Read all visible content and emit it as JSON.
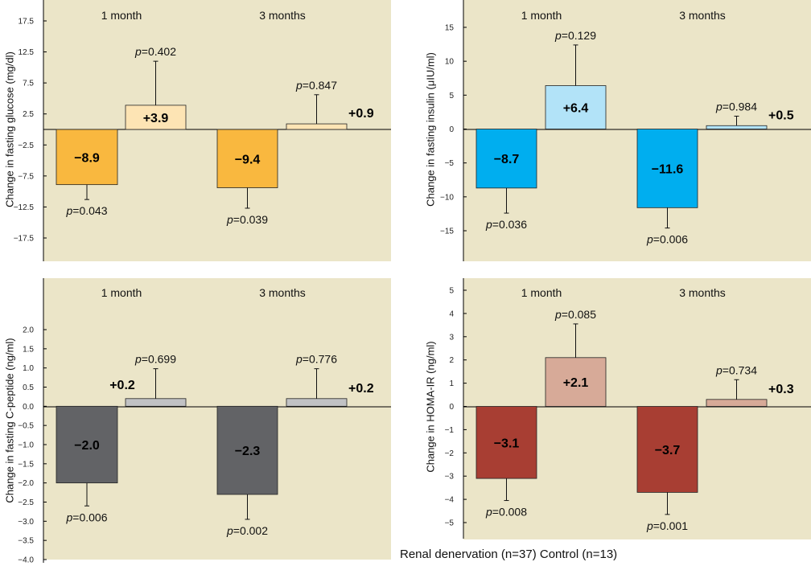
{
  "chart_data": [
    {
      "type": "bar",
      "ylabel": "Change in fasting glucose (mg/dl)",
      "ylim": [
        -20,
        20
      ],
      "yticks": [
        "17.5",
        "12.5",
        "7.5",
        "2.5",
        "-2.5",
        "-7.5",
        "-12.5",
        "-17.5"
      ],
      "categories": [
        "1 month",
        "3 months"
      ],
      "series": [
        {
          "name": "Renal denervation",
          "values": [
            -8.9,
            -9.4
          ],
          "errors": [
            2.4,
            3.3
          ],
          "labels": [
            "−8.9",
            "−9.4"
          ],
          "pvalues": [
            "0.043",
            "0.039"
          ],
          "color": "#f9b83f"
        },
        {
          "name": "Control",
          "values": [
            3.9,
            0.9
          ],
          "errors": [
            7.1,
            4.7
          ],
          "labels": [
            "+3.9",
            "+0.9"
          ],
          "pvalues": [
            "0.402",
            "0.847"
          ],
          "color": "#fde4b4"
        }
      ]
    },
    {
      "type": "bar",
      "ylabel": "Change in fasting insulin (μIU/ml)",
      "ylim": [
        -19,
        19
      ],
      "yticks": [
        "15",
        "10",
        "5",
        "0",
        "-5",
        "-10",
        "-15"
      ],
      "categories": [
        "1 month",
        "3 months"
      ],
      "series": [
        {
          "name": "Renal denervation",
          "values": [
            -8.7,
            -11.6
          ],
          "errors": [
            3.7,
            3.0
          ],
          "labels": [
            "−8.7",
            "−11.6"
          ],
          "pvalues": [
            "0.036",
            "0.006"
          ],
          "color": "#00aeef"
        },
        {
          "name": "Control",
          "values": [
            6.4,
            0.5
          ],
          "errors": [
            6.0,
            1.4
          ],
          "labels": [
            "+6.4",
            "+0.5"
          ],
          "pvalues": [
            "0.129",
            "0.984"
          ],
          "color": "#b2e3f8"
        }
      ]
    },
    {
      "type": "bar",
      "ylabel": "Change in fasting C-peptide (ng/ml)",
      "ylim": [
        -4,
        2.5
      ],
      "yticks": [
        "2.0",
        "1.5",
        "1.0",
        "0.5",
        "0.0",
        "-0.5",
        "-1.0",
        "-1.5",
        "-2.0",
        "-2.5",
        "-3.0",
        "-3.5",
        "-4.0"
      ],
      "categories": [
        "1 month",
        "3 months"
      ],
      "series": [
        {
          "name": "Renal denervation",
          "values": [
            -2.0,
            -2.3
          ],
          "errors": [
            0.6,
            0.65
          ],
          "labels": [
            "−2.0",
            "−2.3"
          ],
          "pvalues": [
            "0.006",
            "0.002"
          ],
          "color": "#626366"
        },
        {
          "name": "Control",
          "values": [
            0.2,
            0.2
          ],
          "errors": [
            0.78,
            0.78
          ],
          "labels": [
            "+0.2",
            "+0.2"
          ],
          "pvalues": [
            "0.699",
            "0.776"
          ],
          "color": "#c1c2c4"
        }
      ]
    },
    {
      "type": "bar",
      "ylabel": "Change in HOMA-IR (ng/ml)",
      "ylim": [
        -5.6,
        5.6
      ],
      "yticks": [
        "5",
        "4",
        "3",
        "2",
        "1",
        "0",
        "-1",
        "-2",
        "-3",
        "-4",
        "-5"
      ],
      "categories": [
        "1 month",
        "3 months"
      ],
      "series": [
        {
          "name": "Renal denervation",
          "values": [
            -3.1,
            -3.7
          ],
          "errors": [
            0.95,
            0.95
          ],
          "labels": [
            "−3.1",
            "−3.7"
          ],
          "pvalues": [
            "0.008",
            "0.001"
          ],
          "color": "#a83e33"
        },
        {
          "name": "Control",
          "values": [
            2.1,
            0.3
          ],
          "errors": [
            1.45,
            0.85
          ],
          "labels": [
            "+2.1",
            "+0.3"
          ],
          "pvalues": [
            "0.085",
            "0.734"
          ],
          "color": "#d7aa98"
        }
      ]
    }
  ],
  "p_prefix": "p",
  "p_eq": "=",
  "legend_text": "Renal denervation (n=37) Control (n=13)"
}
